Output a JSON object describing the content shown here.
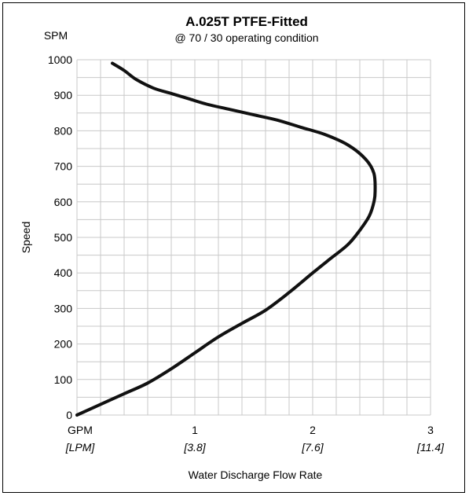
{
  "chart_data": {
    "type": "line",
    "title": "A.025T PTFE-Fitted",
    "subtitle": "@ 70 / 30 operating condition",
    "ylabel": "Speed",
    "yunit": "SPM",
    "xlabel": "Water Discharge Flow Rate",
    "xunit_primary": "GPM",
    "xunit_secondary": "[LPM]",
    "xlim": [
      0,
      3
    ],
    "ylim": [
      0,
      1000
    ],
    "grid": true,
    "x_ticks": [
      {
        "value": 1,
        "label": "1",
        "sublabel": "[3.8]"
      },
      {
        "value": 2,
        "label": "2",
        "sublabel": "[7.6]"
      },
      {
        "value": 3,
        "label": "3",
        "sublabel": "[11.4]"
      }
    ],
    "y_ticks": [
      "0",
      "100",
      "200",
      "300",
      "400",
      "500",
      "600",
      "700",
      "800",
      "900",
      "1000"
    ],
    "series": [
      {
        "x": [
          0,
          0.2,
          0.4,
          0.6,
          0.8,
          1.0,
          1.2,
          1.4,
          1.6,
          1.8,
          2.0,
          2.15,
          2.3,
          2.4,
          2.48,
          2.52,
          2.53,
          2.52,
          2.45,
          2.3,
          2.1,
          1.9,
          1.7,
          1.5,
          1.3,
          1.1,
          0.95,
          0.8,
          0.65,
          0.5,
          0.4,
          0.3
        ],
        "y": [
          0,
          30,
          60,
          90,
          130,
          175,
          220,
          258,
          295,
          345,
          400,
          440,
          480,
          520,
          560,
          600,
          630,
          680,
          720,
          760,
          790,
          810,
          830,
          845,
          860,
          875,
          890,
          905,
          920,
          945,
          970,
          990
        ]
      }
    ]
  }
}
